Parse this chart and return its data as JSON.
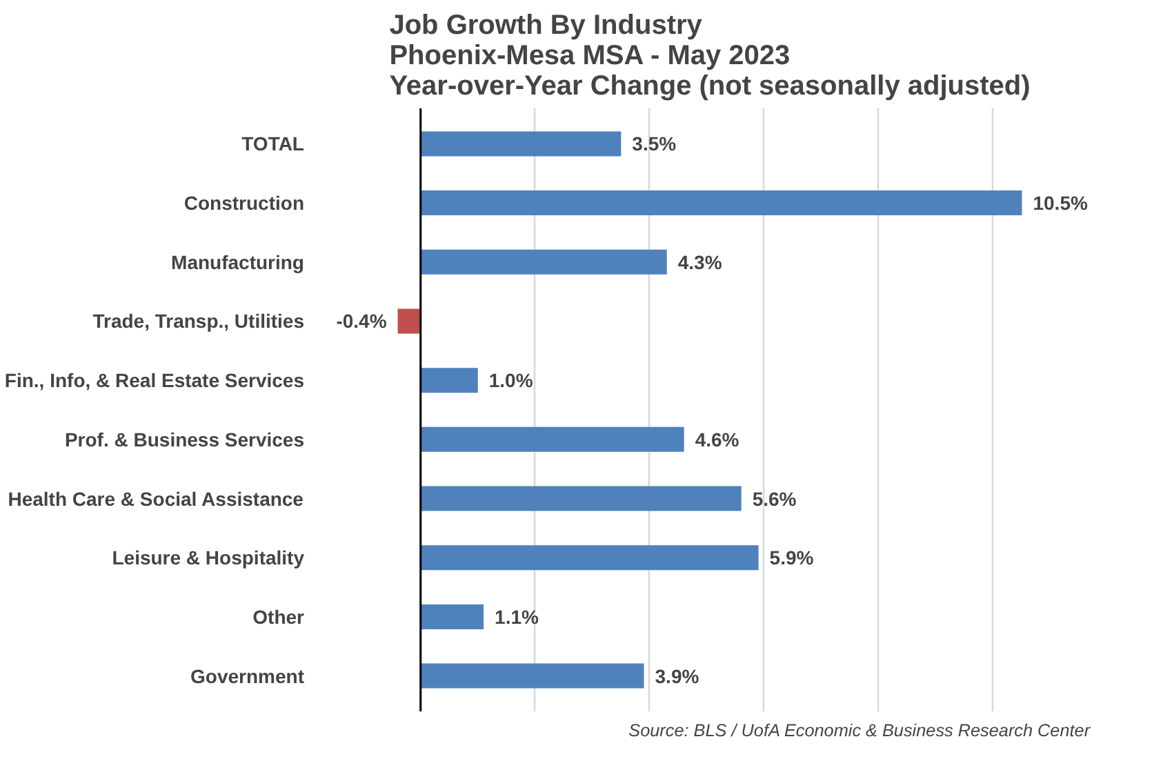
{
  "chart_data": {
    "type": "bar",
    "orientation": "horizontal",
    "title": "Job Growth By Industry\nPhoenix-Mesa MSA - May 2023\nYear-over-Year Change (not seasonally adjusted)",
    "categories": [
      "TOTAL",
      "Construction",
      "Manufacturing",
      "Trade, Transp., Utilities",
      "Fin., Info, & Real Estate Services",
      "Prof. & Business Services",
      "Health Care & Social Assistance",
      "Leisure & Hospitality",
      "Other",
      "Government"
    ],
    "values": [
      3.5,
      10.5,
      4.3,
      -0.4,
      1.0,
      4.6,
      5.6,
      5.9,
      1.1,
      3.9
    ],
    "value_labels": [
      "3.5%",
      "10.5%",
      "4.3%",
      "-0.4%",
      "1.0%",
      "4.6%",
      "5.6%",
      "5.9%",
      "1.1%",
      "3.9%"
    ],
    "colors": [
      "#4f81bd",
      "#4f81bd",
      "#4f81bd",
      "#c0504d",
      "#4f81bd",
      "#4f81bd",
      "#4f81bd",
      "#4f81bd",
      "#4f81bd",
      "#4f81bd"
    ],
    "grid": "x",
    "tick_labels": "y",
    "annotations": [
      "Source: BLS / UofA Economic & Business Research Center"
    ]
  }
}
